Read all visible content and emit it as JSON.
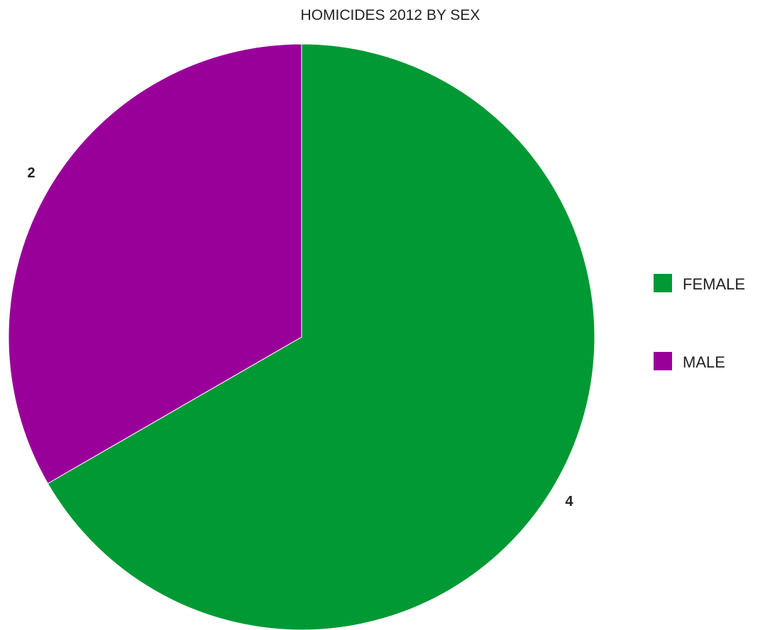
{
  "chart_data": {
    "type": "pie",
    "title": "HOMICIDES 2012 BY SEX",
    "labels": [
      "FEMALE",
      "MALE"
    ],
    "values": [
      4,
      2
    ],
    "data_labels": [
      "4",
      "2"
    ],
    "colors": [
      "#019934",
      "#990099"
    ],
    "legend": {
      "position": "right",
      "entries": [
        "FEMALE",
        "MALE"
      ]
    },
    "start_angle_deg": 0,
    "direction": "clockwise"
  }
}
